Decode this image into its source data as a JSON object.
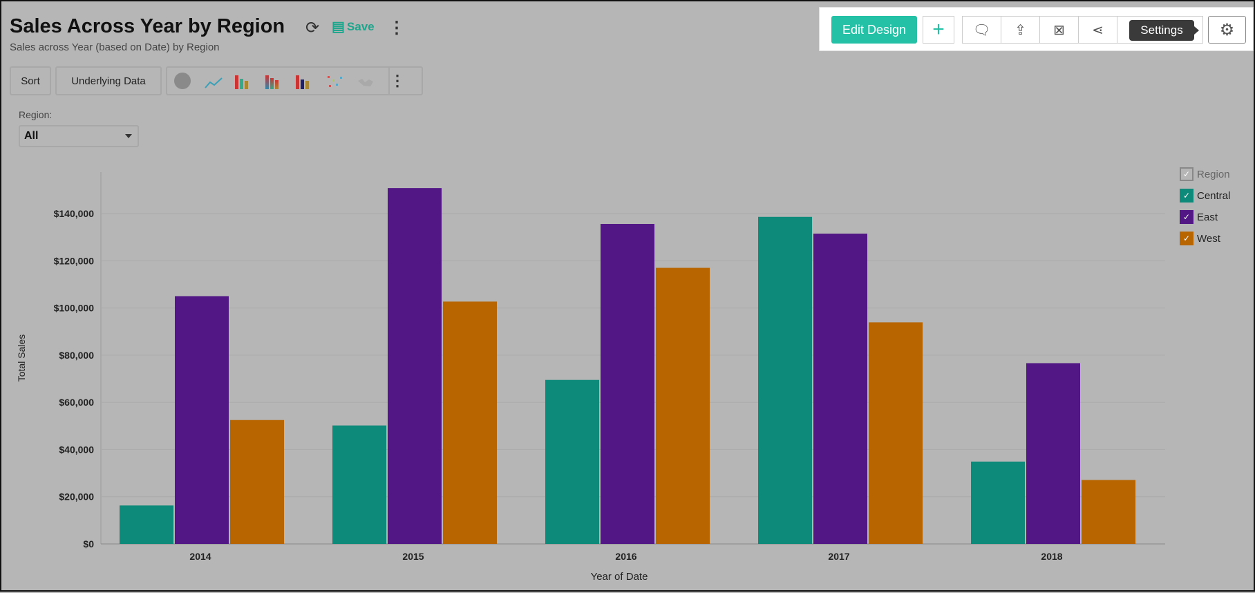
{
  "header": {
    "title": "Sales Across Year by Region",
    "subtitle": "Sales across Year (based on Date) by Region",
    "save_label": "Save"
  },
  "toolbar": {
    "sort_label": "Sort",
    "underlying_label": "Underlying Data",
    "chart_types": [
      "pie",
      "line",
      "bar",
      "stacked-bar",
      "combo",
      "scatter",
      "map"
    ]
  },
  "filter": {
    "label": "Region:",
    "value": "All"
  },
  "actions": {
    "edit_design_label": "Edit Design",
    "tooltip": "Settings",
    "icons": [
      "add-icon",
      "comment-icon",
      "export-icon",
      "email-icon",
      "share-icon",
      "settings-icon"
    ]
  },
  "colors": {
    "Central": "#0e8a7a",
    "East": "#521785",
    "West": "#b86500",
    "accent": "#24c1a6"
  },
  "chart_data": {
    "type": "bar",
    "categories": [
      "2014",
      "2015",
      "2016",
      "2017",
      "2018"
    ],
    "series": [
      {
        "name": "Central",
        "values": [
          16300,
          50200,
          69500,
          138600,
          34900
        ]
      },
      {
        "name": "East",
        "values": [
          105000,
          150800,
          135600,
          131500,
          76600
        ]
      },
      {
        "name": "West",
        "values": [
          52500,
          102700,
          117000,
          93900,
          27100
        ]
      }
    ],
    "xlabel": "Year of Date",
    "ylabel": "Total Sales",
    "ylim": [
      0,
      160000
    ],
    "yticks": [
      "$0",
      "$20,000",
      "$40,000",
      "$60,000",
      "$80,000",
      "$100,000",
      "$120,000",
      "$140,000"
    ],
    "legend_title": "Region",
    "legend_position": "right",
    "grid": true
  }
}
